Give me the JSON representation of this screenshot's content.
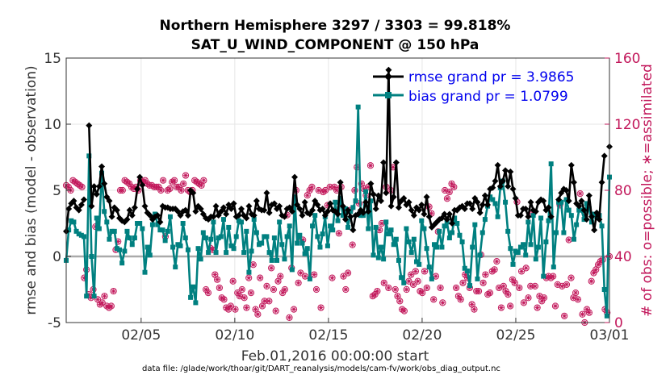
{
  "colors": {
    "rmse": "#000000",
    "bias": "#008080",
    "obs": "#c2185b",
    "zero_line": "#aaaaaa",
    "legend_text": "#0000ee"
  },
  "chart_data": {
    "type": "line",
    "title": "Northern Hemisphere 3297 / 3303 = 99.818%",
    "subtitle": "SAT_U_WIND_COMPONENT @ 150 hPa",
    "xlabel": "Feb.01,2016 00:00:00 start",
    "ylabel": "rmse and bias (model - observation)",
    "ylabel_right": "# of obs: o=possible; ∗=assimilated",
    "footer": "data file: /glade/work/thoar/git/DART_reanalysis/models/cam-fv/work/obs_diag_output.nc",
    "x_range": [
      1,
      30
    ],
    "ylim": [
      -5,
      15
    ],
    "ylim_right": [
      0,
      160
    ],
    "x_ticks": [
      {
        "x": 5,
        "label": "02/05"
      },
      {
        "x": 10,
        "label": "02/10"
      },
      {
        "x": 15,
        "label": "02/15"
      },
      {
        "x": 20,
        "label": "02/20"
      },
      {
        "x": 25,
        "label": "02/25"
      },
      {
        "x": 30,
        "label": "03/01"
      }
    ],
    "y_ticks": [
      "-5",
      "0",
      "5",
      "10",
      "15"
    ],
    "y_ticks_right": [
      "0",
      "40",
      "80",
      "120",
      "160"
    ],
    "legend": [
      {
        "name": "rmse",
        "label": "rmse grand pr = 3.9865"
      },
      {
        "name": "bias",
        "label": "bias grand pr = 1.0799"
      }
    ],
    "series": [
      {
        "name": "rmse",
        "values": [
          1.9,
          3.6,
          4.0,
          4.2,
          3.7,
          3.5,
          3.9,
          4.3,
          null,
          9.9,
          3.8,
          5.3,
          4.7,
          5.3,
          6.8,
          5.5,
          4.5,
          4.2,
          3.0,
          3.7,
          3.5,
          2.9,
          2.7,
          2.6,
          2.8,
          3.5,
          3.1,
          3.7,
          5.1,
          6.0,
          5.4,
          3.8,
          3.3,
          3.1,
          2.8,
          3.0,
          3.1,
          2.6,
          3.8,
          3.7,
          3.7,
          3.6,
          3.6,
          3.6,
          3.4,
          3.1,
          3.4,
          3.5,
          3.1,
          5.0,
          4.8,
          3.4,
          3.8,
          3.6,
          3.2,
          2.9,
          2.8,
          3.0,
          3.0,
          3.8,
          3.1,
          3.4,
          3.7,
          3.2,
          3.9,
          3.6,
          4.0,
          3.0,
          3.1,
          3.6,
          3.1,
          2.9,
          3.8,
          3.2,
          3.1,
          4.2,
          3.6,
          3.5,
          3.5,
          4.8,
          3.3,
          3.9,
          4.0,
          3.6,
          3.8,
          3.1,
          3.0,
          3.6,
          3.7,
          3.4,
          6.0,
          3.9,
          3.6,
          3.1,
          4.1,
          3.3,
          3.2,
          3.5,
          4.2,
          3.9,
          3.5,
          3.6,
          3.1,
          3.4,
          4.0,
          3.5,
          3.4,
          3.2,
          5.6,
          3.8,
          2.8,
          3.5,
          3.0,
          2.0,
          3.1,
          3.2,
          3.5,
          3.3,
          4.1,
          3.4,
          5.5,
          4.7,
          3.6,
          4.6,
          4.2,
          7.1,
          4.8,
          14.1,
          3.8,
          4.5,
          7.1,
          3.7,
          4.2,
          4.4,
          3.9,
          4.1,
          3.5,
          3.1,
          3.7,
          3.5,
          3.9,
          3.2,
          4.5,
          3.0,
          2.2,
          2.4,
          2.6,
          2.8,
          2.9,
          3.2,
          2.8,
          3.2,
          2.5,
          3.5,
          3.5,
          3.7,
          3.8,
          3.6,
          4.0,
          4.0,
          3.6,
          4.4,
          4.1,
          3.3,
          3.9,
          4.6,
          3.9,
          5.1,
          5.2,
          5.7,
          6.9,
          5.3,
          5.7,
          6.5,
          5.3,
          6.4,
          5.1,
          4.4,
          3.1,
          3.1,
          3.6,
          3.6,
          3.0,
          4.1,
          3.5,
          3.4,
          4.1,
          4.3,
          4.2,
          3.5,
          3.7,
          3.0,
          null,
          null,
          4.3,
          4.8,
          5.1,
          5.0,
          4.2,
          6.9,
          5.6,
          4.0,
          3.8,
          4.2,
          3.5,
          2.8,
          4.6,
          3.0,
          2.0,
          3.3,
          2.8,
          5.6,
          7.6,
          null,
          8.3
        ]
      },
      {
        "name": "bias",
        "values": [
          -0.3,
          2.0,
          2.7,
          2.6,
          1.9,
          1.7,
          1.6,
          1.5,
          -3.0,
          7.6,
          0.0,
          -3.0,
          2.9,
          2.1,
          6.3,
          3.4,
          2.6,
          1.3,
          1.9,
          1.9,
          0.6,
          0.5,
          -0.5,
          0.4,
          1.9,
          1.4,
          0.9,
          1.4,
          2.5,
          2.5,
          2.1,
          -1.2,
          0.7,
          0.1,
          2.4,
          3.2,
          2.4,
          2.0,
          2.0,
          1.2,
          1.9,
          3.0,
          0.7,
          -0.8,
          0.9,
          0.8,
          2.5,
          1.4,
          0.5,
          -3.1,
          -2.3,
          -3.5,
          0.6,
          -0.2,
          1.8,
          1.4,
          0.3,
          1.3,
          2.6,
          0.3,
          1.4,
          1.5,
          2.8,
          0.3,
          2.2,
          0.8,
          0.6,
          1.5,
          2.7,
          2.6,
          0.3,
          1.9,
          -1.2,
          0.4,
          2.8,
          1.8,
          0.9,
          1.0,
          1.5,
          1.5,
          0.3,
          -0.3,
          1.4,
          -0.3,
          2.6,
          0.9,
          -0.2,
          1.5,
          2.3,
          -1.0,
          4.5,
          1.0,
          1.6,
          1.0,
          0.2,
          0.6,
          -1.7,
          2.3,
          3.1,
          1.5,
          0.7,
          1.7,
          3.0,
          0.8,
          2.3,
          2.0,
          4.1,
          2.7,
          4.4,
          3.1,
          3.6,
          2.2,
          3.4,
          3.7,
          4.2,
          11.3,
          3.1,
          3.1,
          4.9,
          2.1,
          4.2,
          0.1,
          2.2,
          -0.1,
          0.7,
          -0.2,
          2.6,
          1.7,
          2.0,
          0.9,
          1.3,
          -0.3,
          -1.6,
          -2.0,
          2.1,
          1.1,
          0.3,
          1.3,
          -0.4,
          -0.6,
          2.7,
          2.1,
          0.6,
          -0.8,
          -1.7,
          0.9,
          0.7,
          1.9,
          0.7,
          2.3,
          2.6,
          1.4,
          1.8,
          2.9,
          2.5,
          1.6,
          1.1,
          -0.9,
          -1.1,
          -2.2,
          0.7,
          2.4,
          -1.7,
          0.1,
          1.8,
          2.8,
          3.8,
          4.5,
          4.3,
          4.0,
          3.0,
          5.2,
          5.7,
          4.1,
          1.9,
          0.6,
          -0.6,
          0.4,
          0.3,
          0.7,
          0.9,
          0.1,
          2.6,
          0.9,
          3.1,
          -0.2,
          0.7,
          2.9,
          -1.5,
          1.1,
          2.7,
          7.0,
          -0.8,
          1.8,
          4.1,
          4.1,
          1.8,
          4.3,
          3.5,
          3.1,
          1.3,
          2.4,
          3.5,
          3.5,
          2.8,
          4.0,
          3.6,
          2.6,
          3.2,
          3.0,
          3.1,
          2.3,
          -2.5,
          -4.5,
          6.0
        ]
      },
      {
        "name": "obs_possible",
        "values": [
          83,
          82,
          80,
          86,
          85,
          84,
          83,
          82,
          27,
          32,
          17,
          15,
          20,
          58,
          14,
          11,
          12,
          16,
          10,
          9,
          10,
          19,
          44,
          49,
          80,
          80,
          86,
          85,
          84,
          82,
          81,
          82,
          80,
          86,
          85,
          86,
          84,
          83,
          83,
          82,
          82,
          82,
          80,
          86,
          52,
          80,
          81,
          85,
          86,
          82,
          82,
          80,
          84,
          89,
          80,
          79,
          80,
          86,
          85,
          84,
          83,
          86,
          20,
          18,
          45,
          44,
          29,
          26,
          21,
          15,
          14,
          9,
          8,
          10,
          25,
          8,
          18,
          16,
          20,
          15,
          9,
          27,
          18,
          35,
          8,
          5,
          27,
          10,
          13,
          22,
          13,
          33,
          20,
          7,
          25,
          28,
          18,
          20,
          65,
          3,
          33,
          8,
          80,
          24,
          30,
          50,
          28,
          77,
          80,
          82,
          29,
          20,
          80,
          9,
          79,
          80,
          71,
          82,
          27,
          82,
          80,
          54,
          82,
          28,
          20,
          30,
          68,
          47,
          80,
          94,
          72,
          84,
          81,
          77,
          82,
          95,
          16,
          17,
          19,
          56,
          60,
          24,
          82,
          21,
          80,
          94,
          20,
          16,
          13,
          8,
          7,
          20,
          25,
          29,
          23,
          31,
          25,
          19,
          18,
          31,
          21,
          70,
          66,
          14,
          28,
          55,
          21,
          12,
          80,
          75,
          79,
          84,
          82,
          21,
          16,
          14,
          24,
          29,
          27,
          21,
          11,
          8,
          19,
          19,
          41,
          24,
          29,
          17,
          18,
          31,
          32,
          37,
          21,
          9,
          22,
          19,
          17,
          10,
          26,
          24,
          73,
          21,
          31,
          12,
          33,
          15,
          22,
          66,
          22,
          9,
          16,
          13,
          15,
          27,
          28,
          27,
          28,
          10,
          23,
          71,
          22,
          4,
          23,
          50,
          27,
          15,
          18,
          14,
          78,
          5,
          0,
          8,
          6,
          25,
          30,
          32,
          35,
          37,
          38,
          8,
          6,
          40
        ]
      }
    ]
  }
}
